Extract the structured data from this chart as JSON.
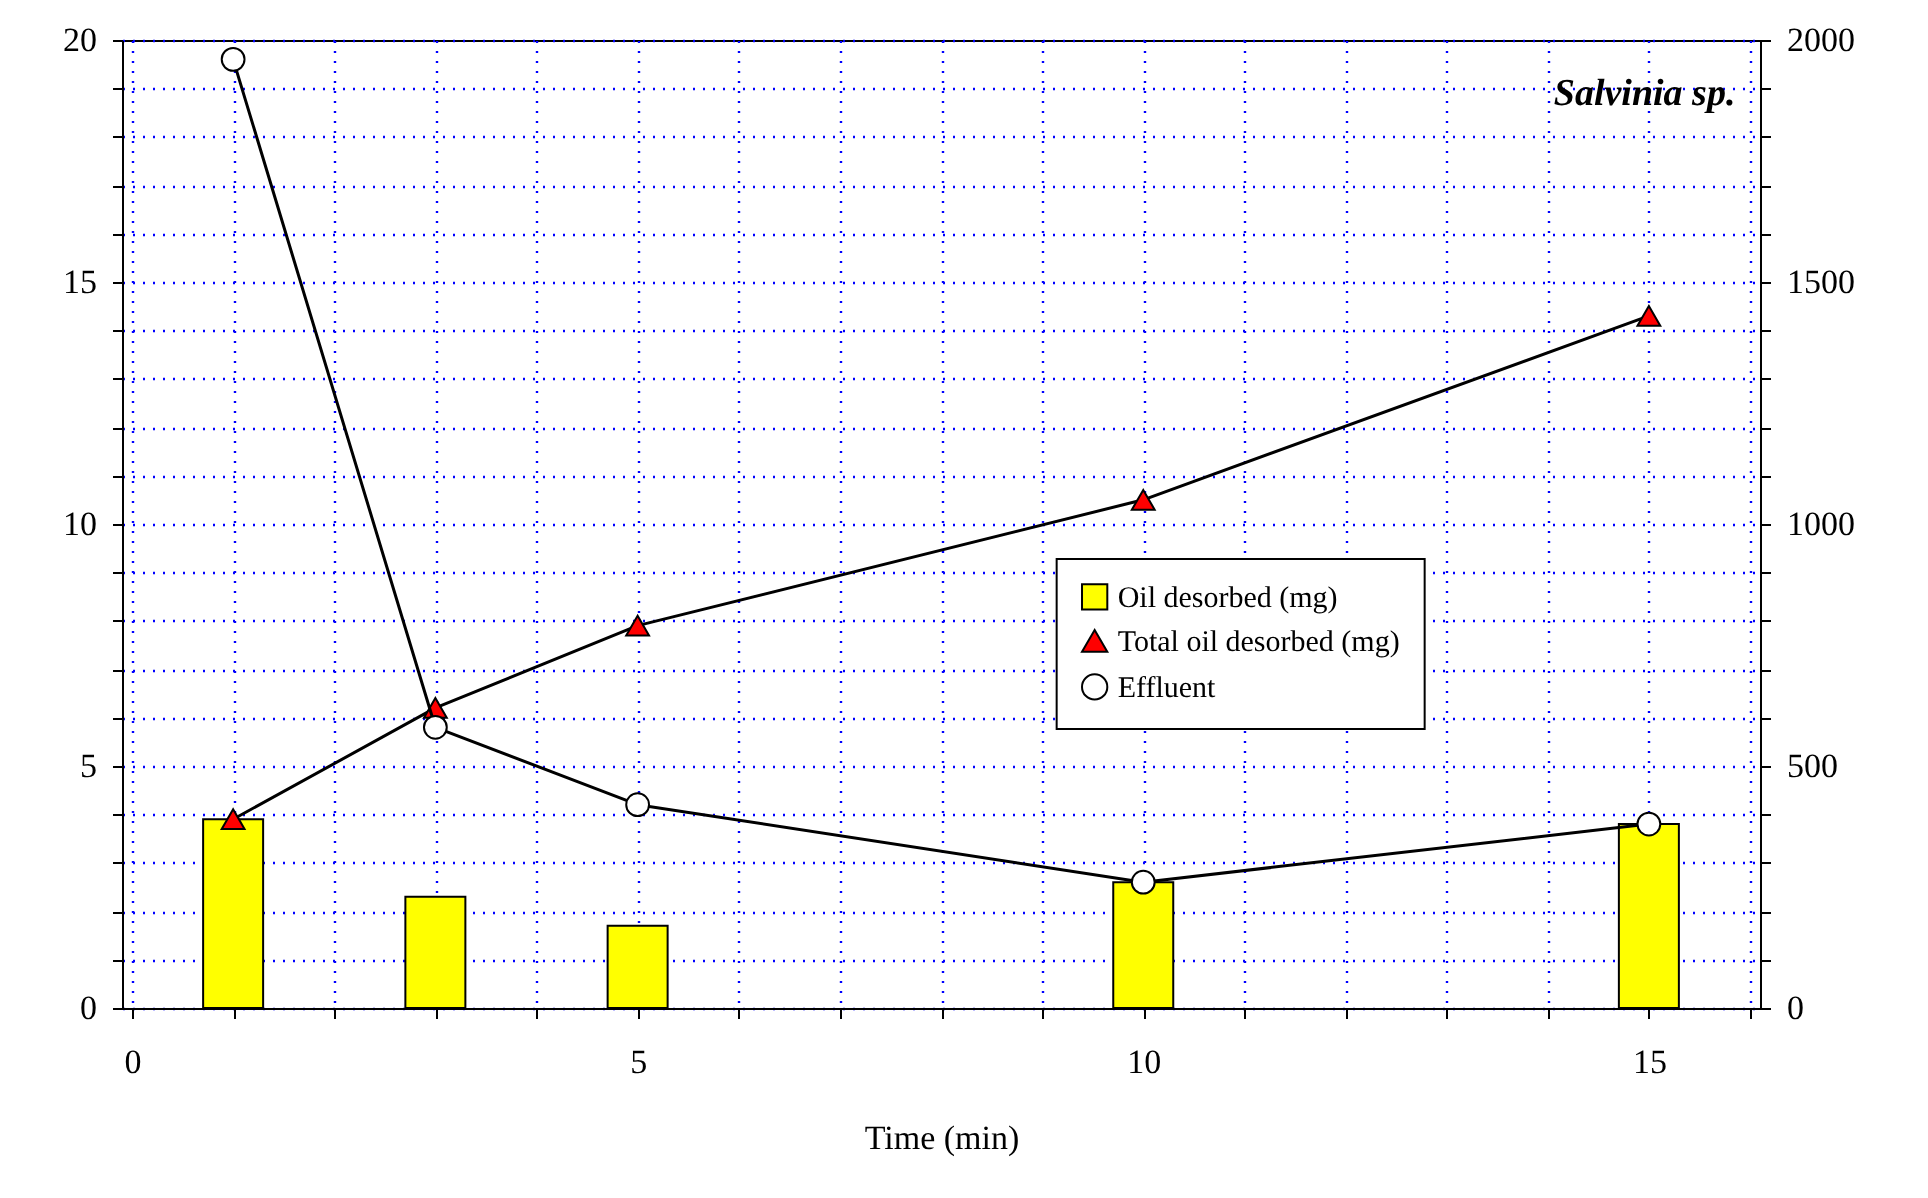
{
  "chart_data": {
    "type": "bar",
    "annotations": [
      "Salvinia sp."
    ],
    "x": [
      1,
      3,
      5,
      10,
      15
    ],
    "xlabel": "Time (min)",
    "xlim": [
      0,
      16
    ],
    "xticks": [
      0,
      {
        "value": 1,
        "label": null
      },
      {
        "value": 2,
        "label": null
      },
      {
        "value": 3,
        "label": null
      },
      {
        "value": 4,
        "label": null
      },
      5,
      {
        "value": 6,
        "label": null
      },
      {
        "value": 7,
        "label": null
      },
      {
        "value": 8,
        "label": null
      },
      {
        "value": 9,
        "label": null
      },
      10,
      {
        "value": 11,
        "label": null
      },
      {
        "value": 12,
        "label": null
      },
      {
        "value": 13,
        "label": null
      },
      {
        "value": 14,
        "label": null
      },
      15,
      {
        "value": 16,
        "label": null
      }
    ],
    "ylim": [
      0,
      20
    ],
    "yticks": [
      0,
      {
        "value": 1,
        "label": null
      },
      {
        "value": 2,
        "label": null
      },
      {
        "value": 3,
        "label": null
      },
      {
        "value": 4,
        "label": null
      },
      5,
      {
        "value": 6,
        "label": null
      },
      {
        "value": 7,
        "label": null
      },
      {
        "value": 8,
        "label": null
      },
      {
        "value": 9,
        "label": null
      },
      10,
      {
        "value": 11,
        "label": null
      },
      {
        "value": 12,
        "label": null
      },
      {
        "value": 13,
        "label": null
      },
      {
        "value": 14,
        "label": null
      },
      15,
      {
        "value": 16,
        "label": null
      },
      {
        "value": 17,
        "label": null
      },
      {
        "value": 18,
        "label": null
      },
      {
        "value": 19,
        "label": null
      },
      20
    ],
    "y2lim": [
      0,
      2000
    ],
    "y2ticks": [
      0,
      {
        "value": 100,
        "label": null
      },
      {
        "value": 200,
        "label": null
      },
      {
        "value": 300,
        "label": null
      },
      {
        "value": 400,
        "label": null
      },
      500,
      {
        "value": 600,
        "label": null
      },
      {
        "value": 700,
        "label": null
      },
      {
        "value": 800,
        "label": null
      },
      {
        "value": 900,
        "label": null
      },
      1000,
      {
        "value": 1100,
        "label": null
      },
      {
        "value": 1200,
        "label": null
      },
      {
        "value": 1300,
        "label": null
      },
      {
        "value": 1400,
        "label": null
      },
      1500,
      {
        "value": 1600,
        "label": null
      },
      {
        "value": 1700,
        "label": null
      },
      {
        "value": 1800,
        "label": null
      },
      {
        "value": 1900,
        "label": null
      },
      2000
    ],
    "grid": true,
    "legend": "right",
    "series": [
      {
        "name": "Oil desorbed (mg)",
        "color": "#ffff00",
        "values": [
          3.9,
          2.3,
          1.7,
          2.6,
          3.8
        ]
      },
      {
        "name": "Total oil desorbed (mg)",
        "type": "line",
        "marker": "triangle",
        "color": "#ff0000",
        "values": [
          3.9,
          6.2,
          7.9,
          10.5,
          14.3
        ]
      },
      {
        "name": "Effluent",
        "type": "line",
        "marker": "circle",
        "color": "#ffffff",
        "axis": "y2",
        "values": [
          1960,
          580,
          420,
          260,
          380
        ]
      }
    ]
  }
}
